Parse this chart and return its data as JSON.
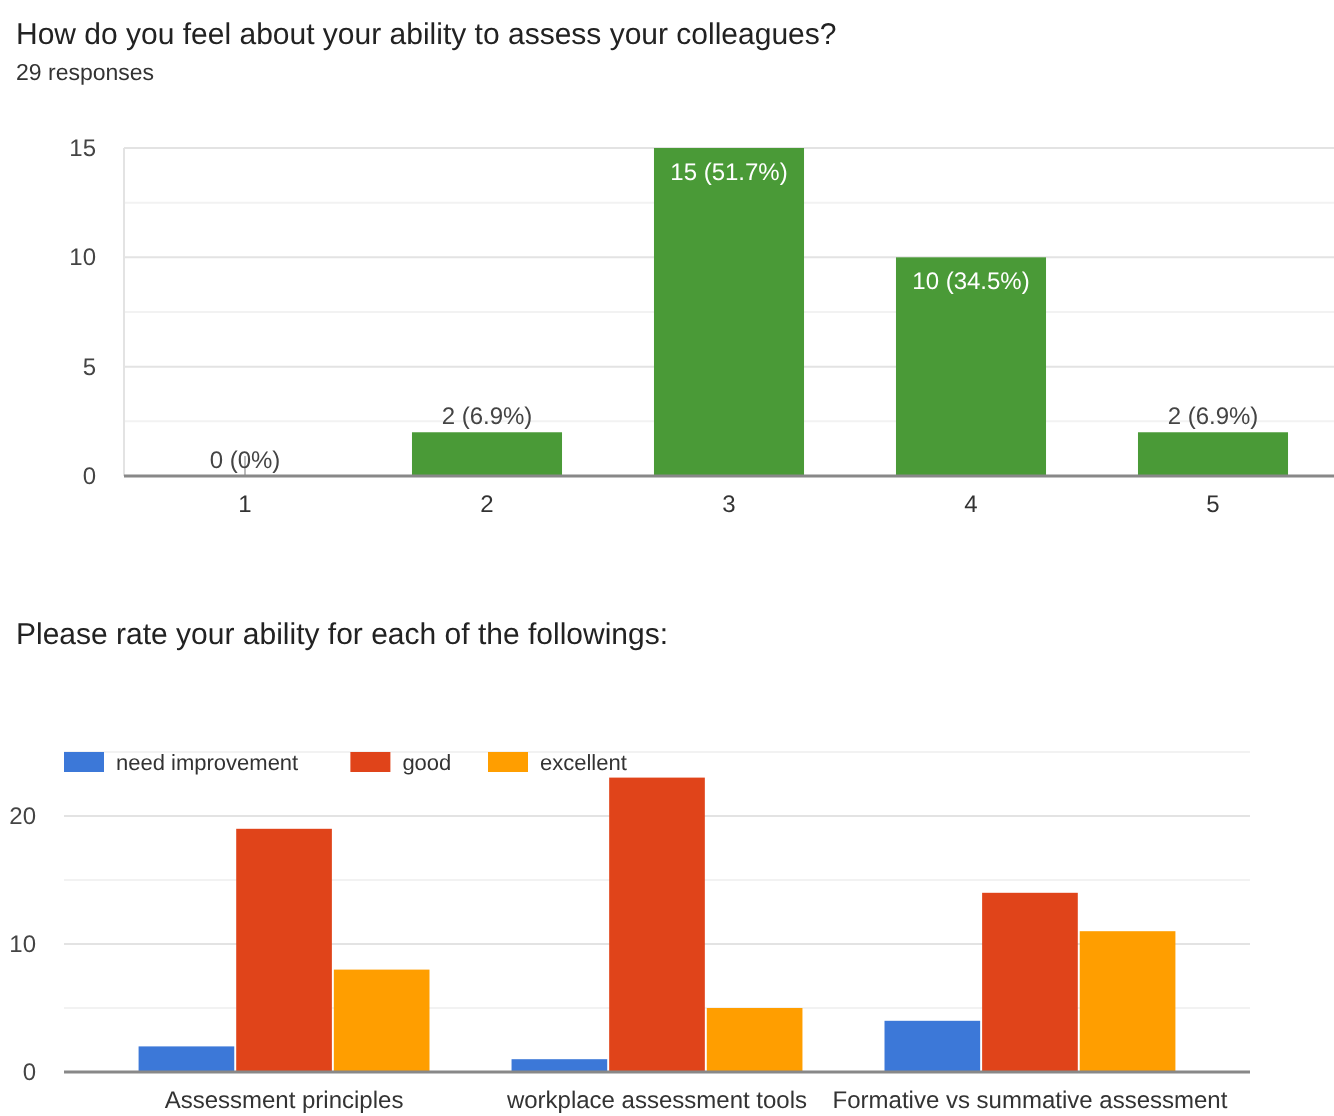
{
  "chart_data": [
    {
      "type": "bar",
      "title": "How do you feel about your ability to assess your colleagues?",
      "subtitle": "29 responses",
      "categories": [
        "1",
        "2",
        "3",
        "4",
        "5"
      ],
      "values": [
        0,
        2,
        15,
        10,
        2
      ],
      "color": "#4a9a37",
      "value_labels": [
        "0 (0%)",
        "2 (6.9%)",
        "15 (51.7%)",
        "10 (34.5%)",
        "2 (6.9%)"
      ],
      "ylim": [
        0,
        15
      ],
      "yticks": [
        0,
        {
          "value": 2.5,
          "label": null
        },
        5,
        {
          "value": 7.5,
          "label": null
        },
        10,
        {
          "value": 12.5,
          "label": null
        },
        15
      ],
      "grid": "y",
      "legend": false
    },
    {
      "type": "bar",
      "title": "Please rate your ability for each of the followings:",
      "categories": [
        "Assessment principles",
        "workplace assessment tools",
        "Formative vs summative assessment"
      ],
      "series": [
        {
          "name": "need improvement",
          "color": "#3c78d8",
          "values": [
            2,
            1,
            4
          ]
        },
        {
          "name": "good",
          "color": "#e0441a",
          "values": [
            19,
            23,
            14
          ]
        },
        {
          "name": "excellent",
          "color": "#ff9e00",
          "values": [
            8,
            5,
            11
          ]
        }
      ],
      "ylim": [
        0,
        25
      ],
      "yticks": [
        0,
        {
          "value": 5,
          "label": null
        },
        10,
        {
          "value": 15,
          "label": null
        },
        20,
        {
          "value": 25,
          "label": null
        }
      ],
      "grid": "y",
      "legend": "top left"
    }
  ]
}
